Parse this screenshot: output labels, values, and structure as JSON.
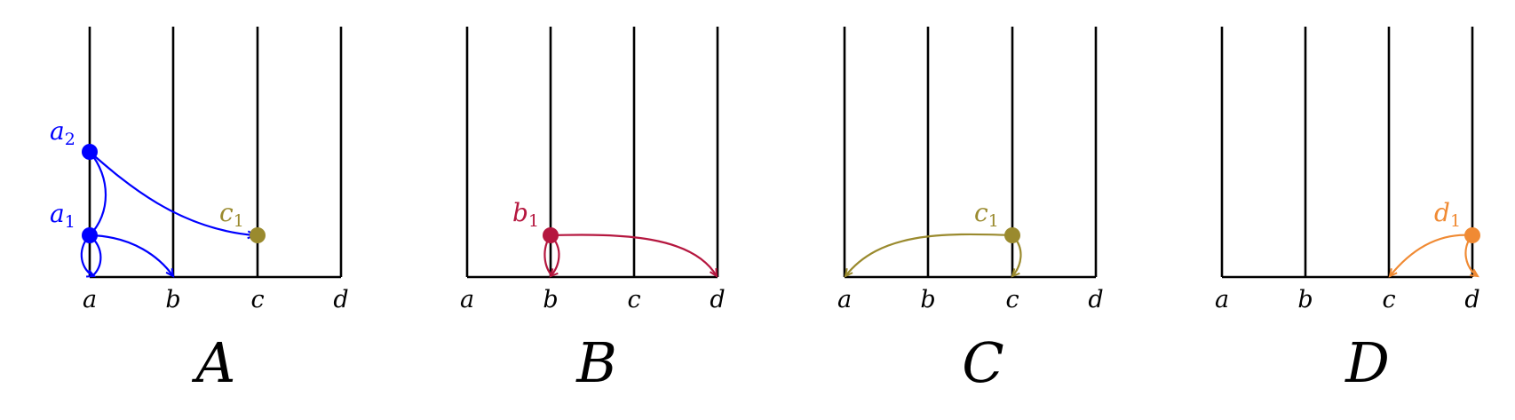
{
  "colors": {
    "line": "#000000",
    "a": "#0000ff",
    "b": "#b5173f",
    "c": "#9a8a2e",
    "d": "#f08a33"
  },
  "axis_labels": [
    "a",
    "b",
    "c",
    "d"
  ],
  "panels": [
    {
      "title": "A",
      "nodes": [
        {
          "label": "a",
          "sub": "2",
          "color_key": "a"
        },
        {
          "label": "a",
          "sub": "1",
          "color_key": "a"
        },
        {
          "label": "c",
          "sub": "1",
          "color_key": "c"
        }
      ]
    },
    {
      "title": "B",
      "nodes": [
        {
          "label": "b",
          "sub": "1",
          "color_key": "b"
        }
      ]
    },
    {
      "title": "C",
      "nodes": [
        {
          "label": "c",
          "sub": "1",
          "color_key": "c"
        }
      ]
    },
    {
      "title": "D",
      "nodes": [
        {
          "label": "d",
          "sub": "1",
          "color_key": "d"
        }
      ]
    }
  ]
}
